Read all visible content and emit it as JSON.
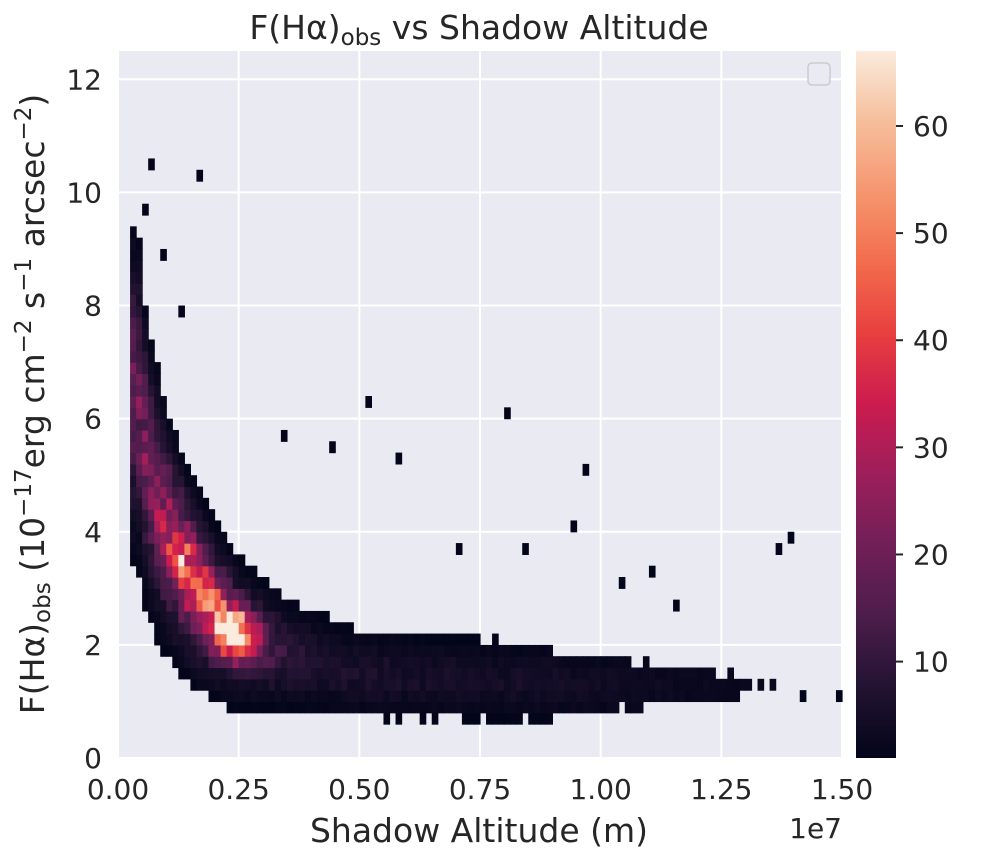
{
  "chart_data": {
    "type": "heatmap",
    "subtype": "2d-histogram",
    "title": "F(Hα)obs vs Shadow Altitude",
    "title_parts": {
      "prefix": "F(Hα)",
      "sub": "obs",
      "suffix": " vs Shadow Altitude"
    },
    "xlabel": "Shadow Altitude (m)",
    "x_offset_text": "1e7",
    "ylabel_parts": {
      "a": "F(Hα)",
      "a_sub": "obs",
      "b": " (10",
      "b_sup": "−17",
      "c": "erg cm",
      "c_sup": "−2",
      "d": " s",
      "d_sup": "−1",
      "e": " arcsec",
      "e_sup": "−2",
      "f": ")"
    },
    "xlim": [
      0.0,
      1.5
    ],
    "ylim": [
      0,
      12.5
    ],
    "x_ticks": [
      "0.00",
      "0.25",
      "0.50",
      "0.75",
      "1.00",
      "1.25",
      "1.50"
    ],
    "x_tick_values": [
      0.0,
      0.25,
      0.5,
      0.75,
      1.0,
      1.25,
      1.5
    ],
    "y_ticks": [
      "0",
      "2",
      "4",
      "6",
      "8",
      "10",
      "12"
    ],
    "y_tick_values": [
      0,
      2,
      4,
      6,
      8,
      10,
      12
    ],
    "colorbar": {
      "range": [
        1,
        67
      ],
      "ticks": [
        "10",
        "20",
        "30",
        "40",
        "50",
        "60"
      ],
      "tick_values": [
        10,
        20,
        30,
        40,
        50,
        60
      ],
      "colormap": "rocket"
    },
    "bins": {
      "x_width": 0.0125,
      "y_width": 0.2
    },
    "ridge": [
      {
        "x": 0.04,
        "y": 6.5
      },
      {
        "x": 0.06,
        "y": 5.2
      },
      {
        "x": 0.08,
        "y": 4.6
      },
      {
        "x": 0.1,
        "y": 4.1
      },
      {
        "x": 0.125,
        "y": 3.6
      },
      {
        "x": 0.15,
        "y": 3.2
      },
      {
        "x": 0.2,
        "y": 2.6
      },
      {
        "x": 0.25,
        "y": 2.2
      },
      {
        "x": 0.3,
        "y": 2.0
      },
      {
        "x": 0.4,
        "y": 1.7
      },
      {
        "x": 0.5,
        "y": 1.5
      },
      {
        "x": 0.6,
        "y": 1.45
      },
      {
        "x": 0.75,
        "y": 1.4
      },
      {
        "x": 0.9,
        "y": 1.35
      },
      {
        "x": 1.0,
        "y": 1.3
      },
      {
        "x": 1.15,
        "y": 1.3
      },
      {
        "x": 1.3,
        "y": 1.25
      },
      {
        "x": 1.5,
        "y": 1.2
      }
    ],
    "peak_bins": [
      {
        "x": 0.225,
        "y": 2.3,
        "count": 67
      },
      {
        "x": 0.26,
        "y": 2.2,
        "count": 60
      },
      {
        "x": 0.125,
        "y": 3.5,
        "count": 45
      },
      {
        "x": 0.18,
        "y": 2.9,
        "count": 40
      }
    ],
    "outliers": [
      {
        "x": 0.065,
        "y": 10.45
      },
      {
        "x": 0.17,
        "y": 10.35
      },
      {
        "x": 0.05,
        "y": 9.7
      },
      {
        "x": 0.09,
        "y": 8.8
      },
      {
        "x": 0.13,
        "y": 7.8
      },
      {
        "x": 0.52,
        "y": 6.2
      },
      {
        "x": 0.8,
        "y": 6.1
      },
      {
        "x": 0.35,
        "y": 5.8
      },
      {
        "x": 0.44,
        "y": 5.6
      },
      {
        "x": 0.97,
        "y": 5.1
      },
      {
        "x": 0.58,
        "y": 5.2
      },
      {
        "x": 0.95,
        "y": 4.05
      },
      {
        "x": 1.4,
        "y": 3.85
      },
      {
        "x": 1.37,
        "y": 3.75
      },
      {
        "x": 0.71,
        "y": 3.7
      },
      {
        "x": 0.84,
        "y": 3.7
      },
      {
        "x": 1.1,
        "y": 3.35
      },
      {
        "x": 1.04,
        "y": 3.1
      },
      {
        "x": 1.16,
        "y": 2.6
      },
      {
        "x": 1.42,
        "y": 1.2
      },
      {
        "x": 1.49,
        "y": 1.2
      }
    ],
    "legend": {
      "placement": "upper right",
      "entries": []
    },
    "grid": true
  }
}
